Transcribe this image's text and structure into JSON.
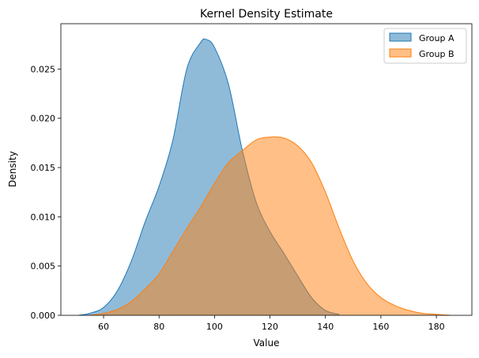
{
  "chart_data": {
    "type": "area",
    "title": "Kernel Density Estimate",
    "xlabel": "Value",
    "ylabel": "Density",
    "xlim": [
      44.6,
      192.8
    ],
    "ylim": [
      0,
      0.0296
    ],
    "xticks": [
      60,
      80,
      100,
      120,
      140,
      160,
      180
    ],
    "yticks": [
      0.0,
      0.005,
      0.01,
      0.015,
      0.02,
      0.025
    ],
    "ytick_labels": [
      "0.000",
      "0.005",
      "0.010",
      "0.015",
      "0.020",
      "0.025"
    ],
    "grid": false,
    "legend_placement": "top-right",
    "series": [
      {
        "name": "Group A",
        "color": "#1f77b4",
        "x": [
          51,
          55,
          60,
          65,
          70,
          75,
          80,
          85,
          90,
          95,
          97,
          100,
          105,
          110,
          115,
          120,
          125,
          130,
          135,
          140,
          145
        ],
        "y": [
          0,
          0.0002,
          0.0008,
          0.0025,
          0.0055,
          0.0095,
          0.0131,
          0.0178,
          0.025,
          0.0277,
          0.028,
          0.0272,
          0.0235,
          0.0168,
          0.0115,
          0.0085,
          0.0063,
          0.004,
          0.0018,
          0.0005,
          0.0001
        ]
      },
      {
        "name": "Group B",
        "color": "#ff7f0e",
        "x": [
          55,
          60,
          65,
          70,
          75,
          80,
          85,
          90,
          95,
          100,
          105,
          110,
          115,
          120,
          125,
          130,
          135,
          140,
          145,
          150,
          155,
          160,
          165,
          170,
          175,
          180,
          185
        ],
        "y": [
          0,
          0.0002,
          0.0006,
          0.0014,
          0.0027,
          0.0042,
          0.0065,
          0.0088,
          0.011,
          0.0134,
          0.0155,
          0.0167,
          0.0178,
          0.0181,
          0.018,
          0.0172,
          0.0155,
          0.0125,
          0.0088,
          0.0055,
          0.0032,
          0.0018,
          0.001,
          0.0005,
          0.0002,
          0.0001,
          0
        ]
      }
    ]
  }
}
